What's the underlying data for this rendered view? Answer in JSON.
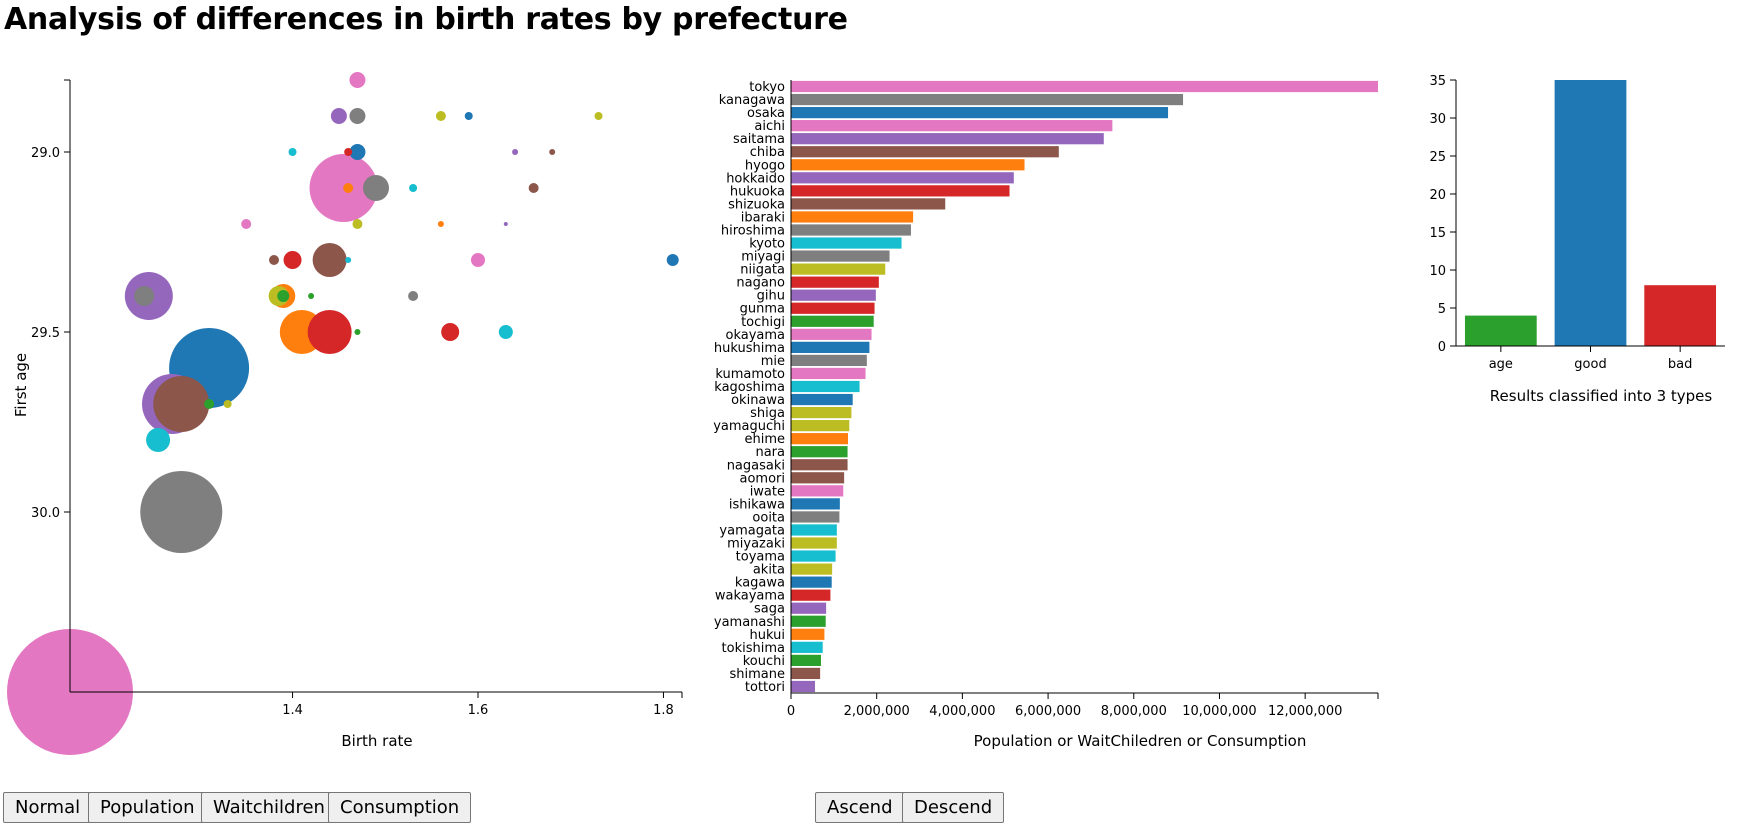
{
  "page": {
    "title": "Analysis of differences in birth rates by prefecture"
  },
  "colors": [
    "#1f77b4",
    "#ff7f0e",
    "#2ca02c",
    "#d62728",
    "#9467bd",
    "#8c564b",
    "#e377c2",
    "#7f7f7f",
    "#bcbd22",
    "#17becf"
  ],
  "buttons": {
    "normal": "Normal",
    "population": "Population",
    "waitchildren": "Waitchildren",
    "consumption": "Consumption",
    "ascend": "Ascend",
    "descend": "Descend"
  },
  "chart_data": [
    {
      "type": "scatter",
      "xlabel": "Birth rate",
      "ylabel": "First age",
      "xticks": [
        1.4,
        1.6,
        1.8
      ],
      "yticks": [
        29.0,
        29.5,
        30.0
      ],
      "xlim": [
        1.16,
        1.82
      ],
      "ylim": [
        28.8,
        30.5
      ],
      "y_reversed": true,
      "grid": false,
      "points": [
        {
          "x": 1.16,
          "y": 30.5,
          "r": 63,
          "color": "#e377c2"
        },
        {
          "x": 1.28,
          "y": 30.0,
          "r": 41,
          "color": "#7f7f7f"
        },
        {
          "x": 1.31,
          "y": 29.6,
          "r": 40,
          "color": "#1f77b4"
        },
        {
          "x": 1.27,
          "y": 29.7,
          "r": 30,
          "color": "#9467bd"
        },
        {
          "x": 1.28,
          "y": 29.7,
          "r": 28,
          "color": "#8c564b"
        },
        {
          "x": 1.455,
          "y": 29.1,
          "r": 34,
          "color": "#e377c2"
        },
        {
          "x": 1.41,
          "y": 29.5,
          "r": 22,
          "color": "#ff7f0e"
        },
        {
          "x": 1.44,
          "y": 29.5,
          "r": 22,
          "color": "#d62728"
        },
        {
          "x": 1.245,
          "y": 29.4,
          "r": 24,
          "color": "#9467bd"
        },
        {
          "x": 1.24,
          "y": 29.4,
          "r": 10,
          "color": "#7f7f7f"
        },
        {
          "x": 1.44,
          "y": 29.3,
          "r": 17,
          "color": "#8c564b"
        },
        {
          "x": 1.255,
          "y": 29.8,
          "r": 12,
          "color": "#17becf"
        },
        {
          "x": 1.49,
          "y": 29.1,
          "r": 13,
          "color": "#7f7f7f"
        },
        {
          "x": 1.39,
          "y": 29.4,
          "r": 12,
          "color": "#ff7f0e"
        },
        {
          "x": 1.385,
          "y": 29.4,
          "r": 10,
          "color": "#bcbd22"
        },
        {
          "x": 1.39,
          "y": 29.4,
          "r": 6,
          "color": "#2ca02c"
        },
        {
          "x": 1.4,
          "y": 29.3,
          "r": 9,
          "color": "#d62728"
        },
        {
          "x": 1.47,
          "y": 28.8,
          "r": 8,
          "color": "#e377c2"
        },
        {
          "x": 1.45,
          "y": 28.9,
          "r": 8,
          "color": "#9467bd"
        },
        {
          "x": 1.47,
          "y": 28.9,
          "r": 8,
          "color": "#7f7f7f"
        },
        {
          "x": 1.47,
          "y": 29.0,
          "r": 8,
          "color": "#1f77b4"
        },
        {
          "x": 1.57,
          "y": 29.5,
          "r": 9,
          "color": "#d62728"
        },
        {
          "x": 1.6,
          "y": 29.3,
          "r": 7,
          "color": "#e377c2"
        },
        {
          "x": 1.63,
          "y": 29.5,
          "r": 7,
          "color": "#17becf"
        },
        {
          "x": 1.81,
          "y": 29.3,
          "r": 6,
          "color": "#1f77b4"
        },
        {
          "x": 1.38,
          "y": 29.3,
          "r": 5,
          "color": "#8c564b"
        },
        {
          "x": 1.56,
          "y": 28.9,
          "r": 5,
          "color": "#bcbd22"
        },
        {
          "x": 1.66,
          "y": 29.1,
          "r": 5,
          "color": "#8c564b"
        },
        {
          "x": 1.59,
          "y": 28.9,
          "r": 4,
          "color": "#1f77b4"
        },
        {
          "x": 1.73,
          "y": 28.9,
          "r": 4,
          "color": "#bcbd22"
        },
        {
          "x": 1.35,
          "y": 29.2,
          "r": 5,
          "color": "#e377c2"
        },
        {
          "x": 1.47,
          "y": 29.2,
          "r": 5,
          "color": "#bcbd22"
        },
        {
          "x": 1.53,
          "y": 29.4,
          "r": 5,
          "color": "#7f7f7f"
        },
        {
          "x": 1.4,
          "y": 29.0,
          "r": 4,
          "color": "#17becf"
        },
        {
          "x": 1.53,
          "y": 29.1,
          "r": 4,
          "color": "#17becf"
        },
        {
          "x": 1.46,
          "y": 29.0,
          "r": 4,
          "color": "#d62728"
        },
        {
          "x": 1.64,
          "y": 29.0,
          "r": 3,
          "color": "#9467bd"
        },
        {
          "x": 1.68,
          "y": 29.0,
          "r": 3,
          "color": "#8c564b"
        },
        {
          "x": 1.56,
          "y": 29.2,
          "r": 3,
          "color": "#ff7f0e"
        },
        {
          "x": 1.63,
          "y": 29.2,
          "r": 2,
          "color": "#9467bd"
        },
        {
          "x": 1.46,
          "y": 29.1,
          "r": 5,
          "color": "#ff7f0e"
        },
        {
          "x": 1.31,
          "y": 29.7,
          "r": 5,
          "color": "#2ca02c"
        },
        {
          "x": 1.33,
          "y": 29.7,
          "r": 4,
          "color": "#bcbd22"
        },
        {
          "x": 1.42,
          "y": 29.4,
          "r": 3,
          "color": "#2ca02c"
        },
        {
          "x": 1.47,
          "y": 29.5,
          "r": 3,
          "color": "#2ca02c"
        },
        {
          "x": 1.46,
          "y": 29.3,
          "r": 3,
          "color": "#17becf"
        }
      ]
    },
    {
      "type": "bar",
      "orientation": "horizontal",
      "xlabel": "Population or WaitChiledren or Consumption",
      "xticks": [
        0,
        2000000,
        4000000,
        6000000,
        8000000,
        10000000,
        12000000
      ],
      "xtick_labels": [
        "0",
        "2,000,000",
        "4,000,000",
        "6,000,000",
        "8,000,000",
        "10,000,000",
        "12,000,000"
      ],
      "xlim": [
        0,
        13700000
      ],
      "categories": [
        "tokyo",
        "kanagawa",
        "osaka",
        "aichi",
        "saitama",
        "chiba",
        "hyogo",
        "hokkaido",
        "hukuoka",
        "shizuoka",
        "ibaraki",
        "hiroshima",
        "kyoto",
        "miyagi",
        "niigata",
        "nagano",
        "gihu",
        "gunma",
        "tochigi",
        "okayama",
        "hukushima",
        "mie",
        "kumamoto",
        "kagoshima",
        "okinawa",
        "shiga",
        "yamaguchi",
        "ehime",
        "nara",
        "nagasaki",
        "aomori",
        "iwate",
        "ishikawa",
        "ooita",
        "yamagata",
        "miyazaki",
        "toyama",
        "akita",
        "kagawa",
        "wakayama",
        "saga",
        "yamanashi",
        "hukui",
        "tokishima",
        "kouchi",
        "shimane",
        "tottori"
      ],
      "values": [
        13700000,
        9150000,
        8800000,
        7500000,
        7300000,
        6250000,
        5450000,
        5200000,
        5100000,
        3600000,
        2850000,
        2800000,
        2580000,
        2300000,
        2200000,
        2050000,
        1980000,
        1950000,
        1930000,
        1880000,
        1830000,
        1770000,
        1740000,
        1600000,
        1440000,
        1410000,
        1360000,
        1330000,
        1320000,
        1320000,
        1240000,
        1220000,
        1140000,
        1130000,
        1070000,
        1070000,
        1040000,
        960000,
        950000,
        920000,
        820000,
        810000,
        780000,
        740000,
        700000,
        680000,
        560000
      ],
      "colors": [
        "#e377c2",
        "#7f7f7f",
        "#1f77b4",
        "#e377c2",
        "#9467bd",
        "#8c564b",
        "#ff7f0e",
        "#9467bd",
        "#d62728",
        "#8c564b",
        "#ff7f0e",
        "#7f7f7f",
        "#17becf",
        "#7f7f7f",
        "#bcbd22",
        "#d62728",
        "#9467bd",
        "#d62728",
        "#2ca02c",
        "#e377c2",
        "#1f77b4",
        "#7f7f7f",
        "#e377c2",
        "#17becf",
        "#1f77b4",
        "#bcbd22",
        "#bcbd22",
        "#ff7f0e",
        "#2ca02c",
        "#8c564b",
        "#8c564b",
        "#e377c2",
        "#1f77b4",
        "#7f7f7f",
        "#17becf",
        "#bcbd22",
        "#17becf",
        "#bcbd22",
        "#1f77b4",
        "#d62728",
        "#9467bd",
        "#2ca02c",
        "#ff7f0e",
        "#17becf",
        "#2ca02c",
        "#8c564b",
        "#9467bd"
      ]
    },
    {
      "type": "bar",
      "xlabel": "Results classified into 3 types",
      "categories": [
        "age",
        "good",
        "bad"
      ],
      "values": [
        4,
        35,
        8
      ],
      "colors": [
        "#2ca02c",
        "#1f77b4",
        "#d62728"
      ],
      "yticks": [
        0,
        5,
        10,
        15,
        20,
        25,
        30,
        35
      ],
      "ylim": [
        0,
        35
      ]
    }
  ]
}
